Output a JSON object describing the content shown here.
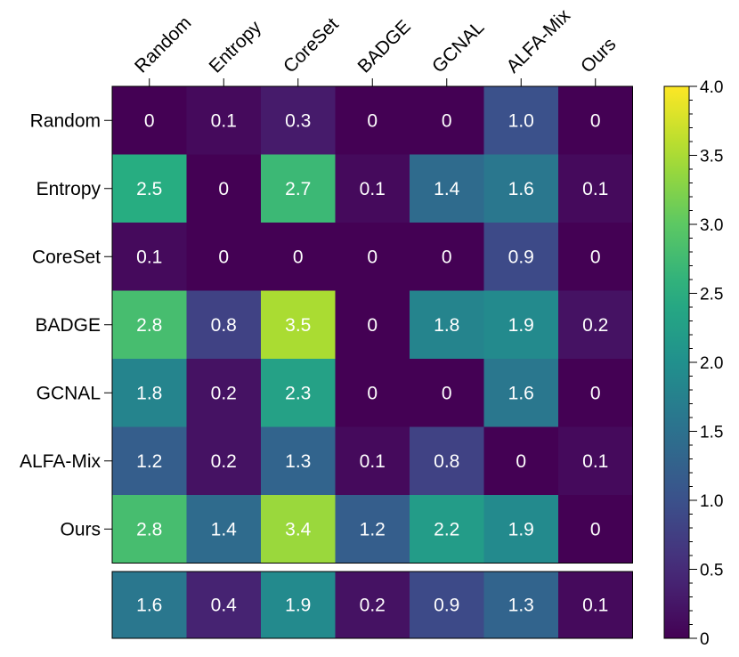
{
  "chart_data": {
    "type": "heatmap",
    "rows": [
      "Random",
      "Entropy",
      "CoreSet",
      "BADGE",
      "GCNAL",
      "ALFA-Mix",
      "Ours"
    ],
    "columns": [
      "Random",
      "Entropy",
      "CoreSet",
      "BADGE",
      "GCNAL",
      "ALFA-Mix",
      "Ours"
    ],
    "matrix": [
      [
        "0",
        "0.1",
        "0.3",
        "0",
        "0",
        "1.0",
        "0"
      ],
      [
        "2.5",
        "0",
        "2.7",
        "0.1",
        "1.4",
        "1.6",
        "0.1"
      ],
      [
        "0.1",
        "0",
        "0",
        "0",
        "0",
        "0.9",
        "0"
      ],
      [
        "2.8",
        "0.8",
        "3.5",
        "0",
        "1.8",
        "1.9",
        "0.2"
      ],
      [
        "1.8",
        "0.2",
        "2.3",
        "0",
        "0",
        "1.6",
        "0"
      ],
      [
        "1.2",
        "0.2",
        "1.3",
        "0.1",
        "0.8",
        "0",
        "0.1"
      ],
      [
        "2.8",
        "1.4",
        "3.4",
        "1.2",
        "2.2",
        "1.9",
        "0"
      ]
    ],
    "summary_row": [
      "1.6",
      "0.4",
      "1.9",
      "0.2",
      "0.9",
      "1.3",
      "0.1"
    ],
    "colorbar": {
      "range": [
        0,
        4.0
      ],
      "ticks": [
        "0",
        "0.5",
        "1.0",
        "1.5",
        "2.0",
        "2.5",
        "3.0",
        "3.5",
        "4.0"
      ],
      "colormap": "viridis"
    },
    "title": "",
    "xlabel": "",
    "ylabel": ""
  }
}
